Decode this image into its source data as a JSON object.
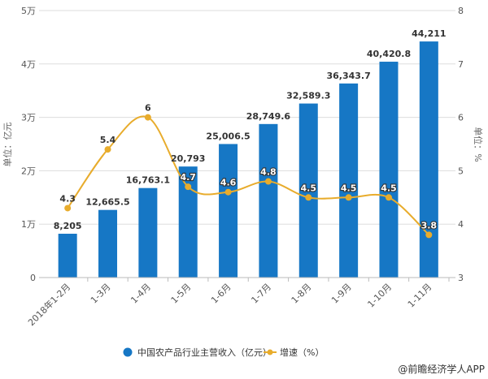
{
  "chart_data": {
    "type": "bar+line",
    "categories": [
      "2018年1-2月",
      "1-3月",
      "1-4月",
      "1-5月",
      "1-6月",
      "1-7月",
      "1-8月",
      "1-9月",
      "1-10月",
      "1-11月"
    ],
    "series": [
      {
        "name": "中国农产品行业主营收入（亿元）",
        "type": "bar",
        "axis": "left",
        "color": "#1677c5",
        "values": [
          8205,
          12665.5,
          16763.1,
          20793,
          25006.5,
          28749.6,
          32589.3,
          36343.7,
          40420.8,
          44211
        ],
        "labels": [
          "8,205",
          "12,665.5",
          "16,763.1",
          "20,793",
          "25,006.5",
          "28,749.6",
          "32,589.3",
          "36,343.7",
          "40,420.8",
          "44,211"
        ]
      },
      {
        "name": "增速（%）",
        "type": "line",
        "axis": "right",
        "color": "#e8ac2c",
        "values": [
          4.3,
          5.4,
          6,
          4.7,
          4.6,
          4.8,
          4.5,
          4.5,
          4.5,
          3.8
        ],
        "labels": [
          "4.3",
          "5.4",
          "6",
          "4.7",
          "4.6",
          "4.8",
          "4.5",
          "4.5",
          "4.5",
          "3.8"
        ]
      }
    ],
    "y_left": {
      "label": "单位：亿元",
      "range": [
        0,
        50000
      ],
      "ticks": [
        "0",
        "1万",
        "2万",
        "3万",
        "4万",
        "5万"
      ]
    },
    "y_right": {
      "label": "单位：%",
      "range": [
        3,
        8
      ],
      "ticks": [
        "3",
        "4",
        "5",
        "6",
        "7",
        "8"
      ]
    },
    "grid": true,
    "legend": "bottom"
  },
  "source": "@前瞻经济学人APP"
}
